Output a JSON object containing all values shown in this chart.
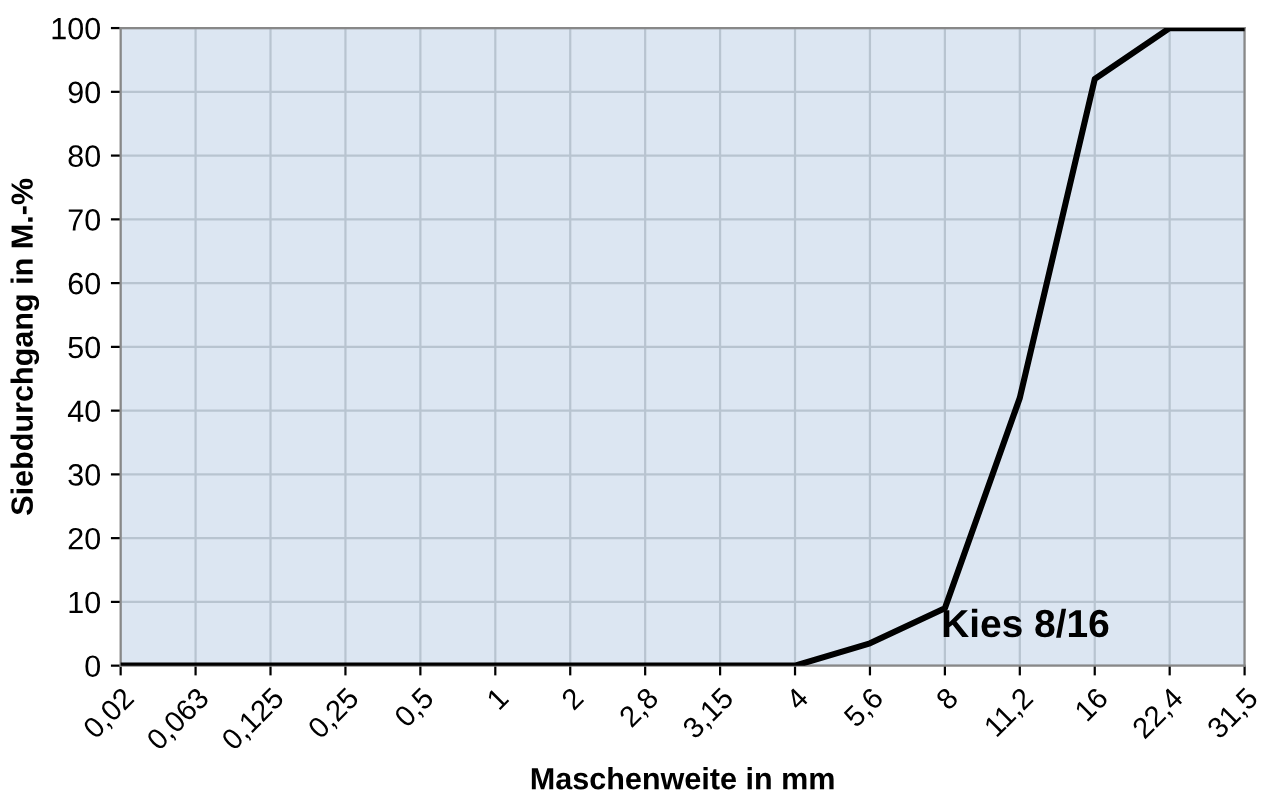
{
  "chart_data": {
    "type": "line",
    "xlabel": "Maschenweite in mm",
    "ylabel": "Siebdurchgang in M.-%",
    "categories": [
      "0,02",
      "0,063",
      "0,125",
      "0,25",
      "0,5",
      "1",
      "2",
      "2,8",
      "3,15",
      "4",
      "5,6",
      "8",
      "11,2",
      "16",
      "22,4",
      "31,5"
    ],
    "series": [
      {
        "name": "Kies 8/16",
        "color": "#000000",
        "values": [
          0,
          0,
          0,
          0,
          0,
          0,
          0,
          0,
          0,
          0,
          3.5,
          9,
          42,
          92,
          100,
          100
        ]
      }
    ],
    "ylim": [
      0,
      100
    ],
    "yticks": [
      0,
      10,
      20,
      30,
      40,
      50,
      60,
      70,
      80,
      90,
      100
    ],
    "grid": true,
    "legend": false,
    "marker": "none",
    "line_style": "solid"
  }
}
